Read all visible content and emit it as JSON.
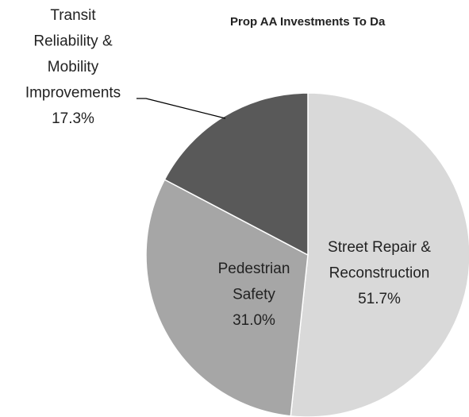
{
  "chart_data": {
    "type": "pie",
    "title": "Prop AA Investments To Da",
    "categories": [
      [
        "Street Repair &",
        "Reconstruction"
      ],
      [
        "Pedestrian",
        "Safety"
      ],
      [
        "Transit",
        "Reliability &",
        "Mobility",
        "Improvements"
      ]
    ],
    "values": [
      51.7,
      31.0,
      17.3
    ],
    "value_labels": [
      "51.7%",
      "31.0%",
      "17.3%"
    ],
    "colors": [
      "#d9d9d9",
      "#a6a6a6",
      "#595959"
    ]
  }
}
